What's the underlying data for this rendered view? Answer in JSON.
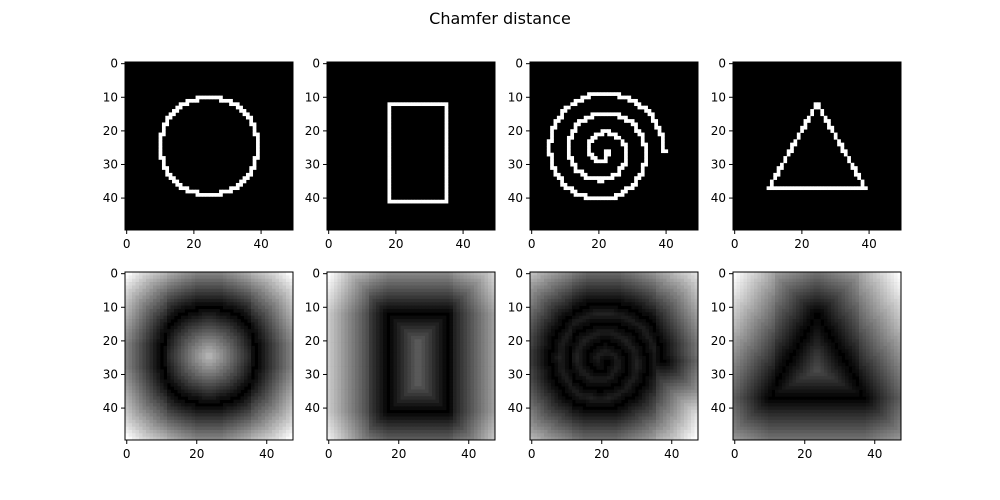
{
  "figure": {
    "title": "Chamfer distance"
  },
  "chart_data": [
    {
      "type": "heatmap",
      "row": "binary",
      "shape": "circle",
      "grid_size": [
        50,
        50
      ],
      "colormap": "gray",
      "xticks": [
        0,
        20,
        40
      ],
      "yticks": [
        0,
        10,
        20,
        30,
        40
      ],
      "circle": {
        "center": [
          24.5,
          24.5
        ],
        "radius": 14.5
      }
    },
    {
      "type": "heatmap",
      "row": "binary",
      "shape": "rectangle",
      "grid_size": [
        50,
        50
      ],
      "colormap": "gray",
      "xticks": [
        0,
        20,
        40
      ],
      "yticks": [
        0,
        10,
        20,
        30,
        40
      ],
      "rectangle": {
        "x0": 18,
        "y0": 12,
        "x1": 35,
        "y1": 41
      }
    },
    {
      "type": "heatmap",
      "row": "binary",
      "shape": "spiral",
      "grid_size": [
        50,
        50
      ],
      "colormap": "gray",
      "xticks": [
        0,
        20,
        40
      ],
      "yticks": [
        0,
        10,
        20,
        30,
        40
      ],
      "spiral": {
        "center": [
          21,
          26
        ],
        "turns": 3,
        "max_radius": 18.5
      }
    },
    {
      "type": "heatmap",
      "row": "binary",
      "shape": "triangle",
      "grid_size": [
        50,
        50
      ],
      "colormap": "gray",
      "xticks": [
        0,
        20,
        40
      ],
      "yticks": [
        0,
        10,
        20,
        30,
        40
      ],
      "triangle": {
        "vertices": [
          [
            24.5,
            12
          ],
          [
            10,
            37
          ],
          [
            39,
            37
          ]
        ]
      }
    },
    {
      "type": "heatmap",
      "row": "distance",
      "shape": "circle",
      "grid_size": [
        48,
        50
      ],
      "colormap": "gray",
      "xticks": [
        0,
        20,
        40
      ],
      "yticks": [
        0,
        10,
        20,
        30,
        40
      ]
    },
    {
      "type": "heatmap",
      "row": "distance",
      "shape": "rectangle",
      "grid_size": [
        48,
        50
      ],
      "colormap": "gray",
      "xticks": [
        0,
        20,
        40
      ],
      "yticks": [
        0,
        10,
        20,
        30,
        40
      ]
    },
    {
      "type": "heatmap",
      "row": "distance",
      "shape": "spiral",
      "grid_size": [
        48,
        50
      ],
      "colormap": "gray",
      "xticks": [
        0,
        20,
        40
      ],
      "yticks": [
        0,
        10,
        20,
        30,
        40
      ]
    },
    {
      "type": "heatmap",
      "row": "distance",
      "shape": "triangle",
      "grid_size": [
        48,
        50
      ],
      "colormap": "gray",
      "xticks": [
        0,
        20,
        40
      ],
      "yticks": [
        0,
        10,
        20,
        30,
        40
      ]
    }
  ]
}
